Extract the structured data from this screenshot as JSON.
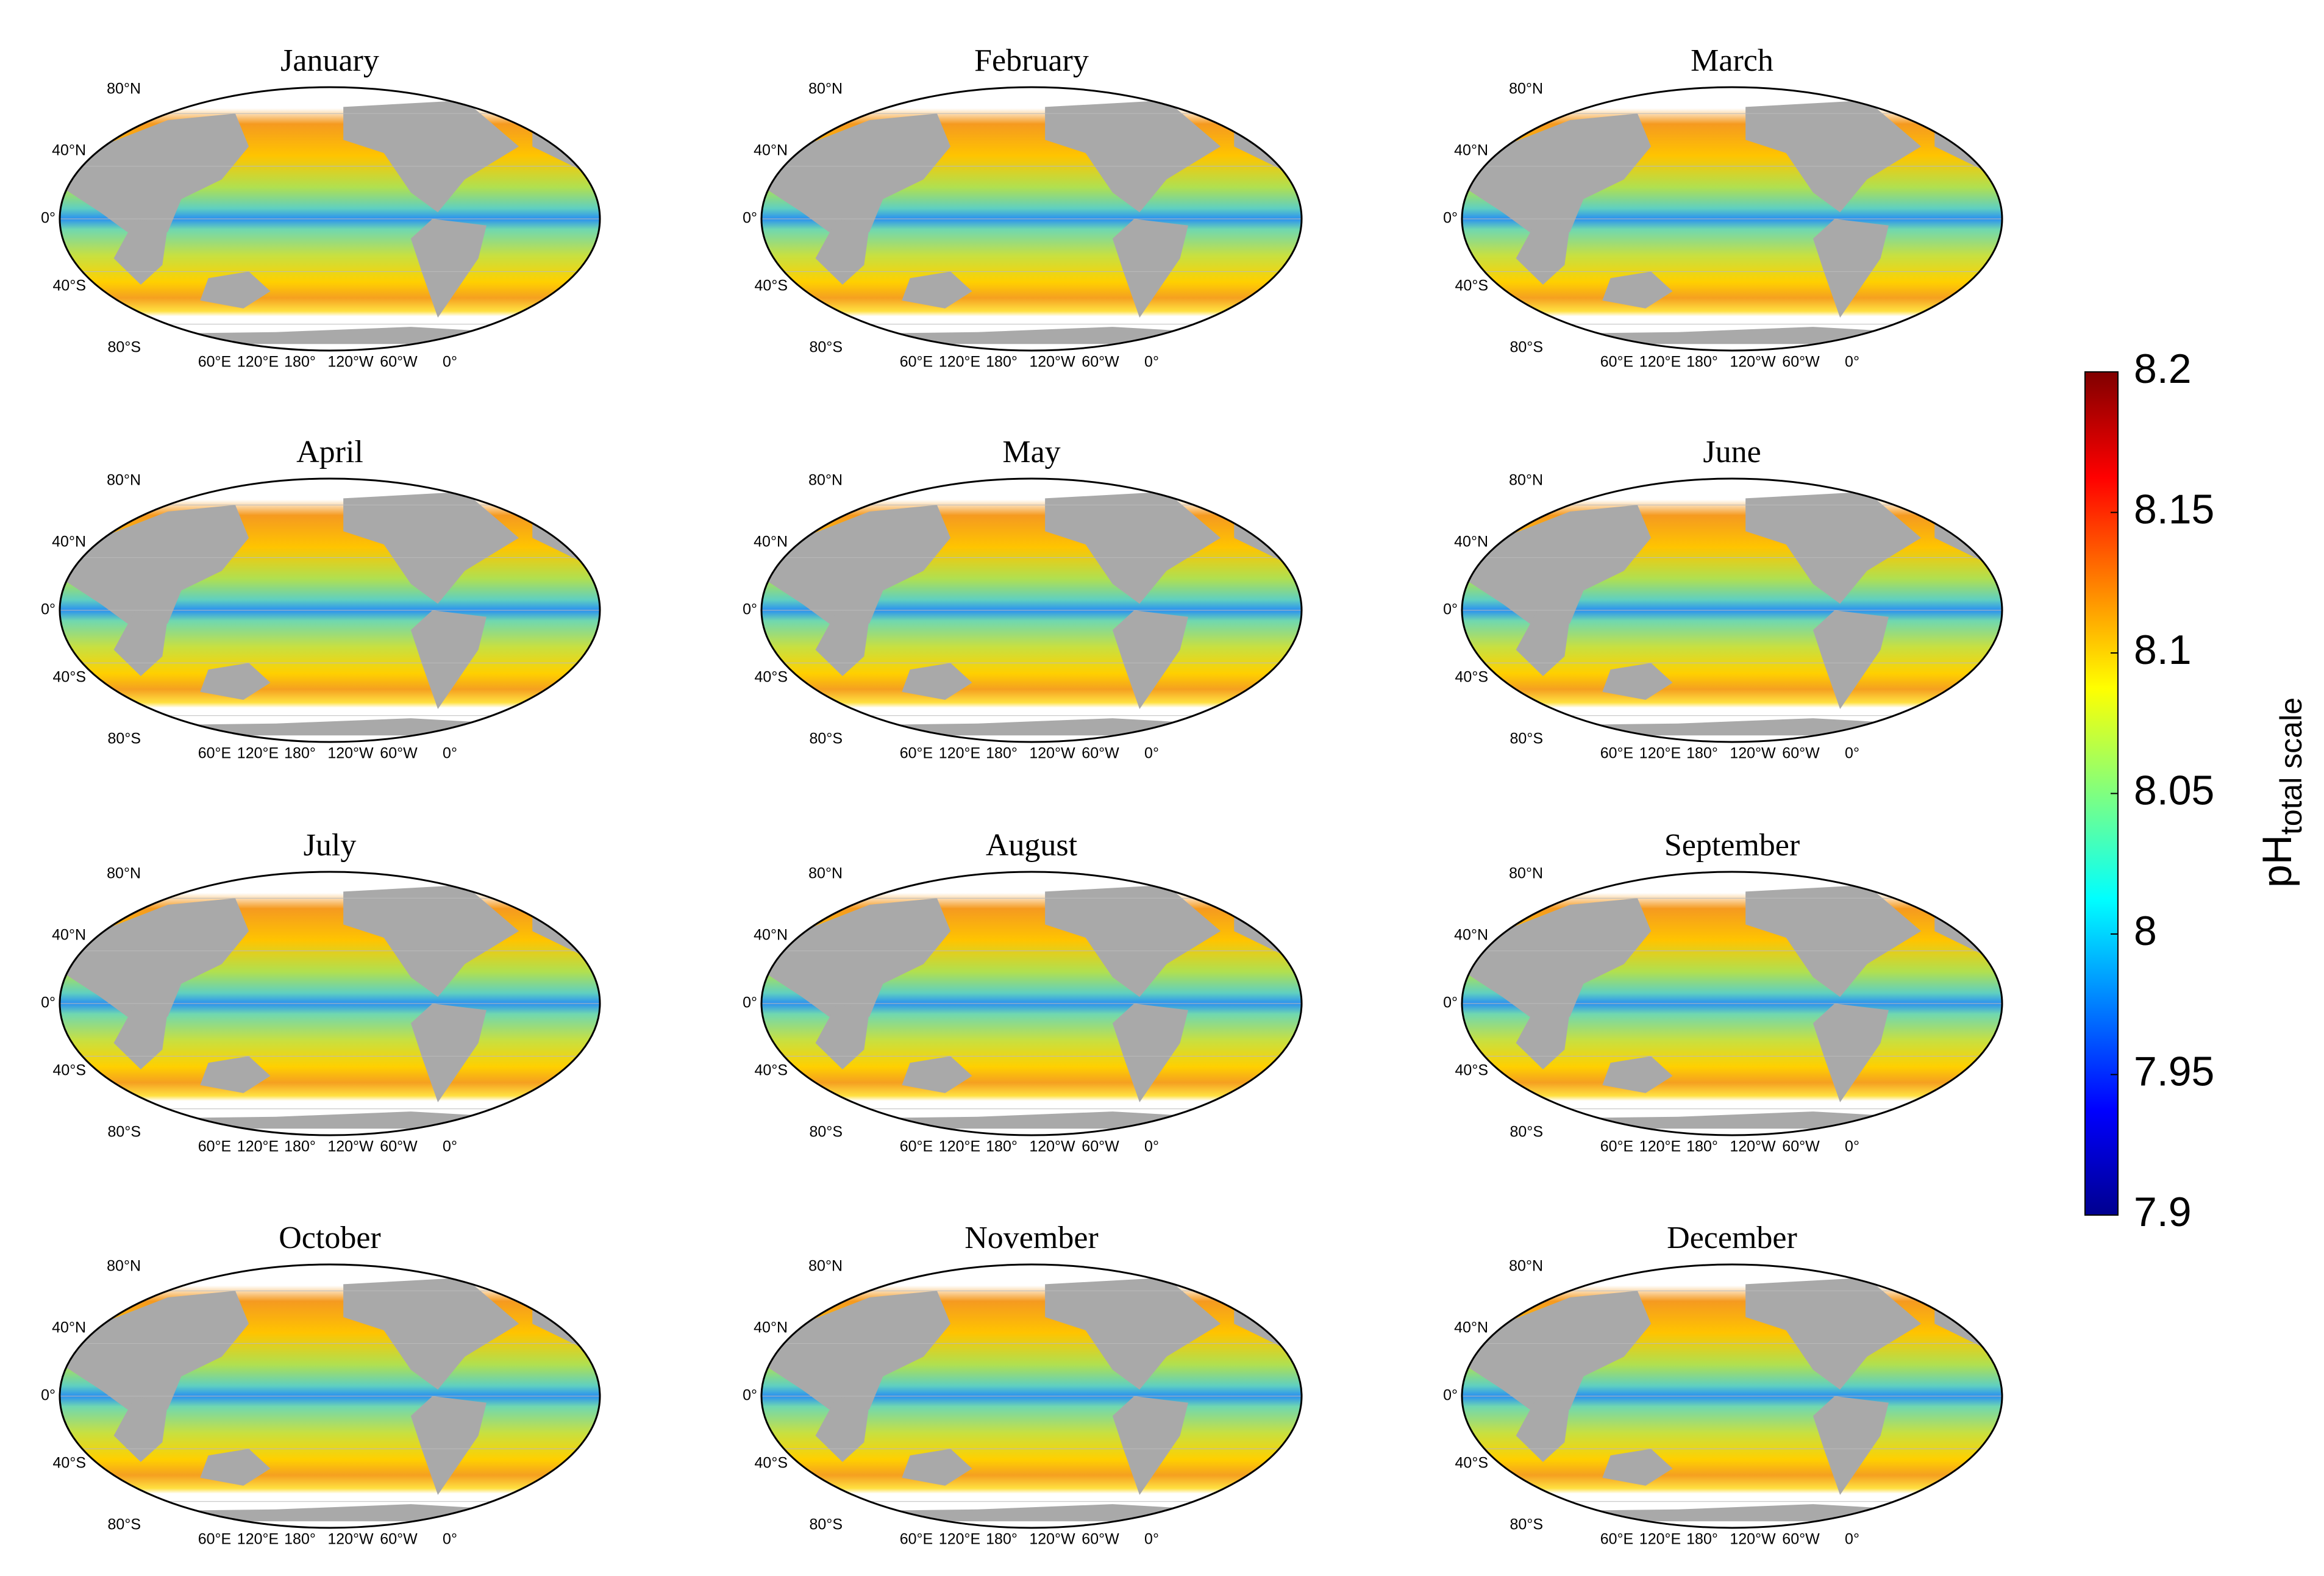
{
  "panels": [
    {
      "title": "January"
    },
    {
      "title": "February"
    },
    {
      "title": "March"
    },
    {
      "title": "April"
    },
    {
      "title": "May"
    },
    {
      "title": "June"
    },
    {
      "title": "July"
    },
    {
      "title": "August"
    },
    {
      "title": "September"
    },
    {
      "title": "October"
    },
    {
      "title": "November"
    },
    {
      "title": "December"
    }
  ],
  "lat_labels": [
    "80°N",
    "40°N",
    "0°",
    "40°S",
    "80°S"
  ],
  "lon_labels": [
    "60°E",
    "120°E",
    "180°",
    "120°W",
    "60°W",
    "0°"
  ],
  "colorbar": {
    "range": [
      7.9,
      8.2
    ],
    "ticks": [
      8.2,
      8.15,
      8.1,
      8.05,
      8,
      7.95,
      7.9
    ],
    "label": "pH",
    "label_sub": "total scale"
  }
}
